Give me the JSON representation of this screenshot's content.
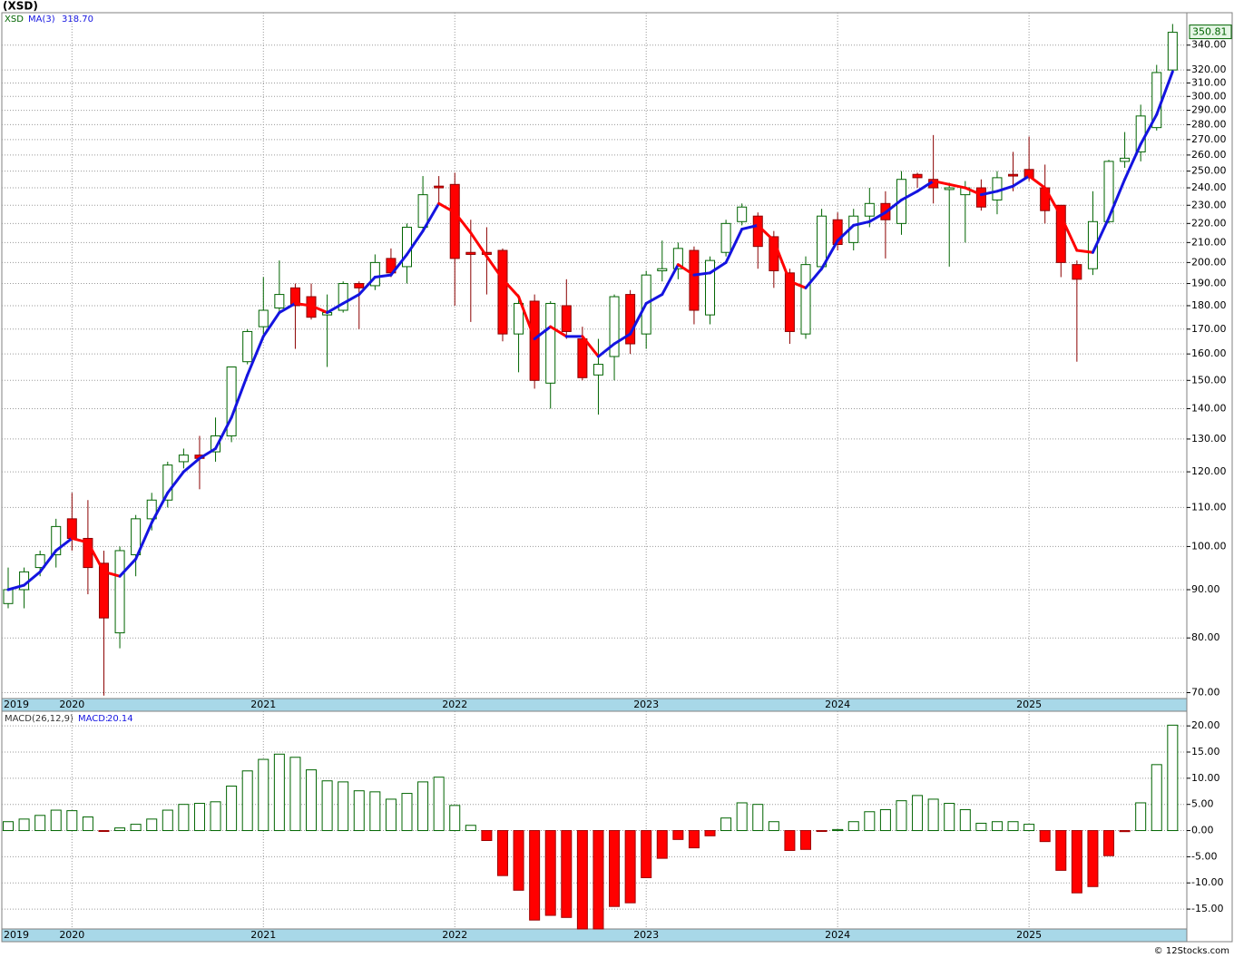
{
  "chart_data": [
    {
      "type": "candlestick",
      "title": "(XSD)",
      "symbol": "XSD",
      "categories": [
        "2019",
        null,
        null,
        null,
        "2020",
        null,
        null,
        null,
        null,
        null,
        null,
        null,
        null,
        null,
        null,
        null,
        "2021",
        null,
        null,
        null,
        null,
        null,
        null,
        null,
        null,
        null,
        null,
        null,
        "2022",
        null,
        null,
        null,
        null,
        null,
        null,
        null,
        null,
        null,
        null,
        null,
        "2023",
        null,
        null,
        null,
        null,
        null,
        null,
        null,
        null,
        null,
        null,
        null,
        "2024",
        null,
        null,
        null,
        null,
        null,
        null,
        null,
        null,
        null,
        null,
        null,
        "2025",
        null,
        null,
        null,
        null,
        null,
        null,
        null,
        null,
        null
      ],
      "open": [
        87,
        90,
        95,
        98,
        107,
        102,
        96,
        81,
        98,
        107,
        112,
        123,
        125,
        126,
        131,
        157,
        171,
        179,
        188,
        184,
        176,
        178,
        190,
        189,
        202,
        198,
        218,
        241,
        242,
        205,
        205,
        206,
        168,
        182,
        149,
        180,
        166,
        152,
        159,
        185,
        168,
        196,
        197,
        206,
        176,
        205,
        221,
        224,
        213,
        195,
        168,
        198,
        222,
        210,
        224,
        231,
        220,
        248,
        245,
        239,
        236,
        240,
        233,
        248,
        251,
        240,
        230,
        199,
        197,
        221,
        256,
        262,
        278,
        320
      ],
      "high": [
        95,
        95,
        99,
        107,
        114,
        112,
        99,
        100,
        108,
        114,
        123,
        127,
        131,
        137,
        155,
        170,
        193,
        201,
        190,
        190,
        185,
        191,
        191,
        204,
        207,
        220,
        247,
        247,
        249,
        222,
        218,
        207,
        185,
        185,
        182,
        192,
        171,
        166,
        185,
        187,
        196,
        211,
        210,
        208,
        203,
        222,
        231,
        226,
        216,
        197,
        203,
        228,
        226,
        228,
        240,
        238,
        250,
        249,
        273,
        243,
        244,
        245,
        250,
        262,
        272,
        254,
        230,
        201,
        238,
        257,
        275,
        294,
        324,
        358
      ],
      "low": [
        86,
        86,
        93,
        95,
        99,
        89,
        69.5,
        78,
        93,
        104,
        110,
        121,
        115,
        123,
        129,
        156,
        168,
        177,
        162,
        174,
        155,
        177,
        170,
        187,
        193,
        190,
        216,
        230,
        180,
        173,
        185,
        165,
        153,
        147,
        140,
        166,
        150,
        138,
        150,
        160,
        162,
        191,
        192,
        172,
        172,
        203,
        219,
        197,
        188,
        164,
        166,
        196,
        206,
        206,
        218,
        202,
        214,
        240,
        231,
        198,
        210,
        227,
        225,
        238,
        244,
        220,
        193,
        157,
        194,
        220,
        252,
        256,
        276,
        318
      ],
      "close": [
        90,
        94,
        98,
        105,
        102,
        95,
        84,
        99,
        107,
        112,
        122,
        125,
        124,
        131,
        155,
        169,
        178,
        185,
        180,
        175,
        177,
        190,
        188,
        200,
        195,
        218,
        236,
        240,
        202,
        204,
        204,
        168,
        181,
        150,
        181,
        169,
        151,
        156,
        184,
        164,
        194,
        197,
        207,
        178,
        201,
        220,
        229,
        208,
        196,
        169,
        199,
        224,
        209,
        224,
        231,
        222,
        245,
        246,
        240,
        240,
        240,
        229,
        246,
        247,
        246,
        227,
        200,
        192,
        221,
        256,
        258,
        286,
        318,
        350.81
      ],
      "up_color": "#006400",
      "down_color": "#ff0000",
      "log_scale": true,
      "grid": true,
      "ylim": [
        69,
        368
      ],
      "yticks": [
        {
          "value": 70,
          "label": "70.00"
        },
        {
          "value": 80,
          "label": "80.00"
        },
        {
          "value": 90,
          "label": "90.00"
        },
        {
          "value": 100,
          "label": "100.00"
        },
        {
          "value": 110,
          "label": "110.00"
        },
        {
          "value": 120,
          "label": "120.00"
        },
        {
          "value": 130,
          "label": "130.00"
        },
        {
          "value": 140,
          "label": "140.00"
        },
        {
          "value": 150,
          "label": "150.00"
        },
        {
          "value": 160,
          "label": "160.00"
        },
        {
          "value": 170,
          "label": "170.00"
        },
        {
          "value": 180,
          "label": "180.00"
        },
        {
          "value": 190,
          "label": "190.00"
        },
        {
          "value": 200,
          "label": "200.00"
        },
        {
          "value": 210,
          "label": "210.00"
        },
        {
          "value": 220,
          "label": "220.00"
        },
        {
          "value": 230,
          "label": "230.00"
        },
        {
          "value": 240,
          "label": "240.00"
        },
        {
          "value": 250,
          "label": "250.00"
        },
        {
          "value": 260,
          "label": "260.00"
        },
        {
          "value": 270,
          "label": "270.00"
        },
        {
          "value": 280,
          "label": "280.00"
        },
        {
          "value": 290,
          "label": "290.00"
        },
        {
          "value": 300,
          "label": "300.00"
        },
        {
          "value": 310,
          "label": "310.00"
        },
        {
          "value": 320,
          "label": "320.00"
        },
        {
          "value": 340,
          "label": "340.00"
        }
      ],
      "ma": {
        "name": "MA(3)",
        "current_label": "318.70",
        "up_color": "#1414e0",
        "down_color": "#ff0000",
        "values": [
          90,
          91,
          94,
          99,
          102,
          101,
          94,
          93,
          97,
          106,
          114,
          120,
          124,
          127,
          137,
          152,
          167,
          177,
          181,
          180,
          177,
          181,
          185,
          193,
          194,
          204,
          216,
          231,
          226,
          215,
          203,
          192,
          184,
          166,
          171,
          167,
          167,
          159,
          164,
          168,
          181,
          185,
          199,
          194,
          195,
          200,
          217,
          219,
          211,
          191,
          188,
          197,
          211,
          219,
          221,
          226,
          233,
          238,
          244,
          242,
          240,
          236,
          238,
          241,
          247,
          240,
          224,
          206,
          205,
          223,
          245,
          267,
          287,
          318.7
        ]
      }
    },
    {
      "type": "bar",
      "title": "MACD(26,12,9)",
      "value_name": "MACD:",
      "categories": [
        "2019",
        null,
        null,
        null,
        "2020",
        null,
        null,
        null,
        null,
        null,
        null,
        null,
        null,
        null,
        null,
        null,
        "2021",
        null,
        null,
        null,
        null,
        null,
        null,
        null,
        null,
        null,
        null,
        null,
        "2022",
        null,
        null,
        null,
        null,
        null,
        null,
        null,
        null,
        null,
        null,
        null,
        "2023",
        null,
        null,
        null,
        null,
        null,
        null,
        null,
        null,
        null,
        null,
        null,
        "2024",
        null,
        null,
        null,
        null,
        null,
        null,
        null,
        null,
        null,
        null,
        null,
        "2025",
        null,
        null,
        null,
        null,
        null,
        null,
        null,
        null,
        null
      ],
      "values": [
        1.7,
        2.2,
        2.9,
        3.9,
        3.8,
        2.6,
        -0.1,
        0.5,
        1.2,
        2.2,
        3.9,
        5.0,
        5.2,
        5.5,
        8.5,
        11.4,
        13.6,
        14.6,
        14.0,
        11.6,
        9.5,
        9.3,
        7.6,
        7.4,
        6.0,
        7.1,
        9.3,
        10.2,
        4.8,
        1.0,
        -1.9,
        -8.6,
        -11.4,
        -17.1,
        -16.2,
        -16.6,
        -18.8,
        -18.8,
        -14.5,
        -13.8,
        -9.0,
        -5.3,
        -1.7,
        -3.3,
        -1.0,
        2.4,
        5.3,
        5.0,
        1.7,
        -3.8,
        -3.6,
        -0.1,
        0.2,
        1.7,
        3.6,
        4.0,
        5.7,
        6.7,
        6.0,
        5.2,
        4.0,
        1.4,
        1.7,
        1.7,
        1.2,
        -2.1,
        -7.6,
        -11.9,
        -10.7,
        -4.8,
        -0.2,
        5.3,
        12.6,
        20.14
      ],
      "positive_color": "#006400",
      "negative_color": "#ff0000",
      "grid": true,
      "ylim": [
        -18.8,
        22.8
      ],
      "yticks": [
        {
          "value": -15,
          "label": "-15.00"
        },
        {
          "value": -10,
          "label": "-10.00"
        },
        {
          "value": -5,
          "label": "-5.00"
        },
        {
          "value": 0,
          "label": "0.00"
        },
        {
          "value": 5,
          "label": "5.00"
        },
        {
          "value": 10,
          "label": "10.00"
        },
        {
          "value": 15,
          "label": "15.00"
        },
        {
          "value": 20,
          "label": "20.00"
        }
      ]
    }
  ],
  "footer": "© 12Stocks.com"
}
